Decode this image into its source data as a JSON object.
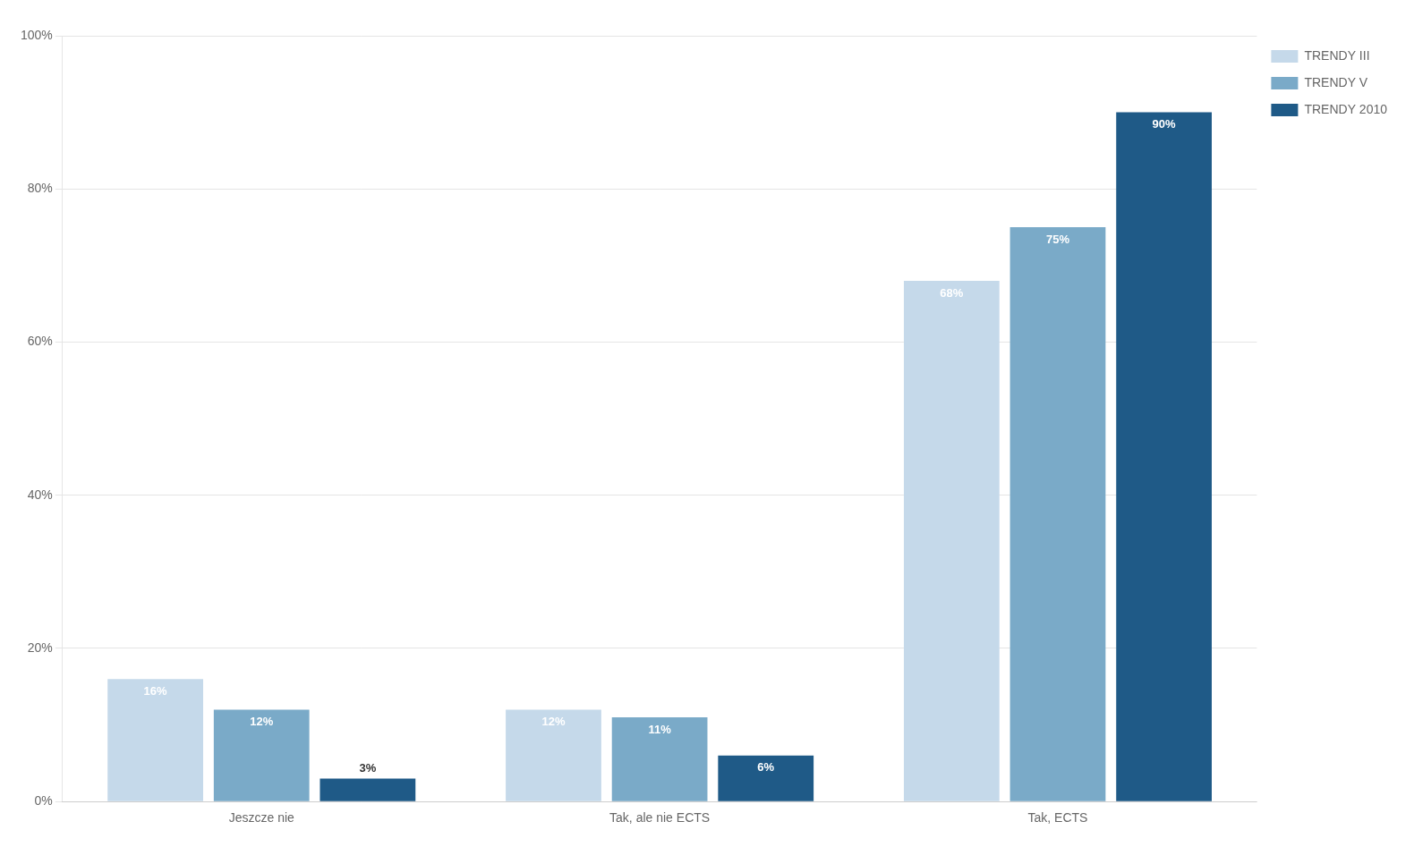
{
  "chart_data": {
    "type": "bar",
    "categories": [
      "Jeszcze nie",
      "Tak, ale nie ECTS",
      "Tak, ECTS"
    ],
    "series": [
      {
        "name": "TRENDY III",
        "color": "#c5d9ea",
        "values": [
          16,
          12,
          68
        ],
        "value_labels": [
          "16%",
          "12%",
          "68%"
        ]
      },
      {
        "name": "TRENDY V",
        "color": "#7aaac8",
        "values": [
          12,
          11,
          75
        ],
        "value_labels": [
          "12%",
          "11%",
          "75%"
        ]
      },
      {
        "name": "TRENDY 2010",
        "color": "#1f5a87",
        "values": [
          3,
          6,
          90
        ],
        "value_labels": [
          "3%",
          "6%",
          "90%"
        ]
      }
    ],
    "ylim": [
      0,
      100
    ],
    "yticks": [
      {
        "value": 0,
        "label": "0%"
      },
      {
        "value": 20,
        "label": "20%"
      },
      {
        "value": 40,
        "label": "40%"
      },
      {
        "value": 60,
        "label": "60%"
      },
      {
        "value": 80,
        "label": "80%"
      },
      {
        "value": 100,
        "label": "100%"
      }
    ],
    "grid": "y",
    "legend": "upper right",
    "data_labels": true
  }
}
